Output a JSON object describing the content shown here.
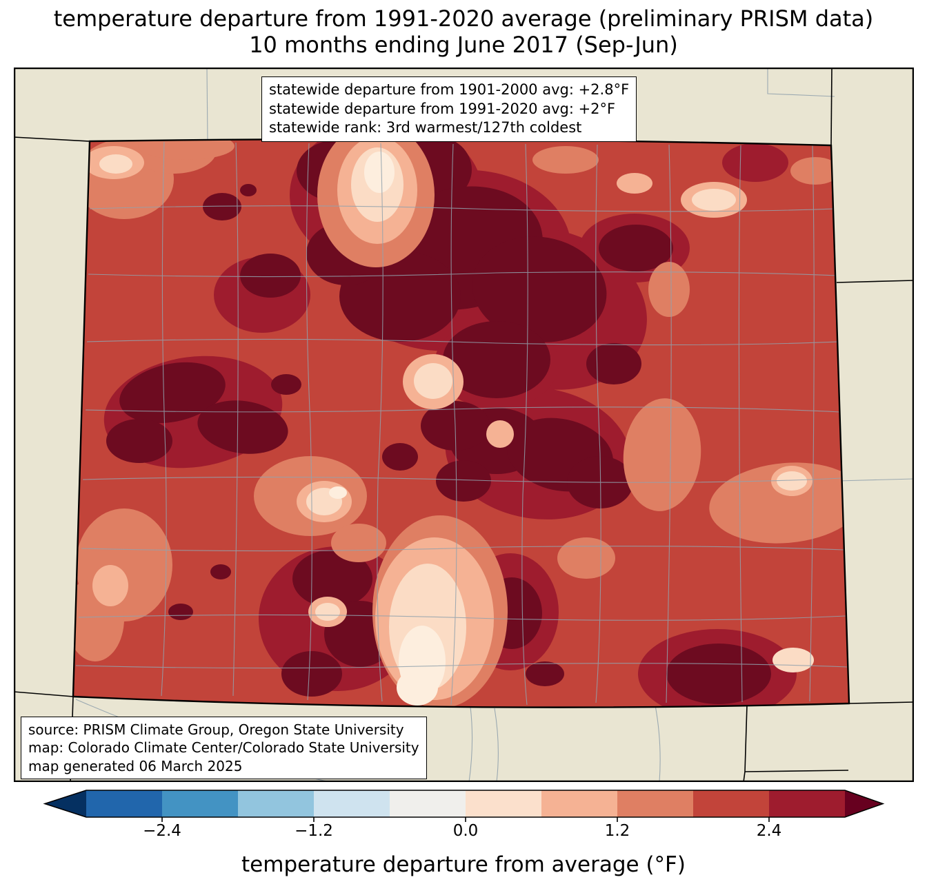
{
  "title": {
    "line1": "temperature departure from 1991-2020 average (preliminary PRISM data)",
    "line2": "10 months ending June 2017 (Sep-Jun)"
  },
  "stats_box": {
    "lines": [
      "statewide departure from 1901-2000 avg: +2.8°F",
      "statewide departure from 1991-2020 avg: +2°F",
      "statewide rank: 3rd warmest/127th coldest"
    ]
  },
  "source_box": {
    "lines": [
      "source: PRISM Climate Group, Oregon State University",
      "map: Colorado Climate Center/Colorado State University",
      "map generated 06 March 2025"
    ]
  },
  "colorbar": {
    "label": "temperature departure from average (°F)",
    "ticks": [
      "−2.4",
      "−1.2",
      "0.0",
      "1.2",
      "2.4"
    ],
    "tick_values": [
      -2.4,
      -1.2,
      0.0,
      1.2,
      2.4
    ],
    "segment_colors": [
      "#2166ac",
      "#4393c3",
      "#92c5de",
      "#cfe3ef",
      "#f0efec",
      "#fbe0cc",
      "#f5b294",
      "#df7f63",
      "#c2443a",
      "#9e1c2e"
    ],
    "arrow_left_color": "#053061",
    "arrow_right_color": "#67001f"
  },
  "map": {
    "region": "Colorado",
    "palette": {
      "out_of_state": "#e9e5d2",
      "county_line": "#92a2ad",
      "state_line": "#000000",
      "base_red": "#c2443a",
      "dark_red": "#9e1c2e",
      "maroon": "#6d0b20",
      "salmon": "#df7f63",
      "peach": "#f5b294",
      "cream": "#fbdcc5",
      "pale": "#fdeede"
    }
  },
  "chart_data": {
    "type": "heatmap",
    "title": "temperature departure from 1991-2020 average (preliminary PRISM data)",
    "subtitle": "10 months ending June 2017 (Sep-Jun)",
    "region": "Colorado",
    "variable": "temperature departure from average (°F)",
    "colorbar_levels": [
      -3.0,
      -2.4,
      -1.8,
      -1.2,
      -0.6,
      0.0,
      0.6,
      1.2,
      1.8,
      2.4,
      3.0
    ],
    "colorbar_extend": "both",
    "statewide_departure_from_1901_2000_avg_F": 2.8,
    "statewide_departure_from_1991_2020_avg_F": 2.0,
    "statewide_rank": "3rd warmest/127th coldest"
  }
}
